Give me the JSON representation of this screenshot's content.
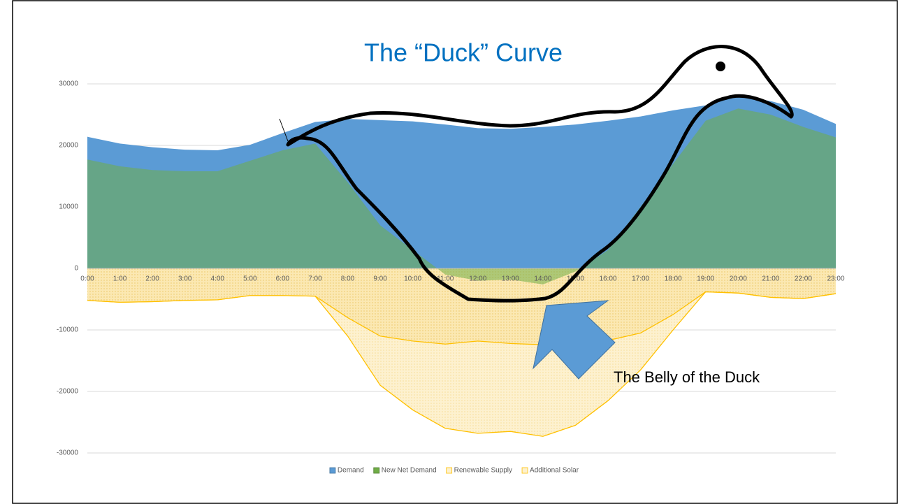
{
  "chart_data": {
    "type": "area",
    "title": "The “Duck” Curve",
    "annotations": [
      "The Belly of the Duck"
    ],
    "categories": [
      "0:00",
      "1:00",
      "2:00",
      "3:00",
      "4:00",
      "5:00",
      "6:00",
      "7:00",
      "8:00",
      "9:00",
      "10:00",
      "11:00",
      "12:00",
      "13:00",
      "14:00",
      "15:00",
      "16:00",
      "17:00",
      "18:00",
      "19:00",
      "20:00",
      "21:00",
      "22:00",
      "23:00"
    ],
    "ylim": [
      -30000,
      30000
    ],
    "yticks": [
      -30000,
      -20000,
      -10000,
      0,
      10000,
      20000,
      30000
    ],
    "grid": true,
    "legend": "bottom",
    "series": [
      {
        "name": "Demand",
        "color": "#5b9bd5",
        "values": [
          21400,
          20300,
          19700,
          19300,
          19200,
          20100,
          22000,
          23800,
          24300,
          24100,
          23900,
          23400,
          22800,
          22700,
          23000,
          23400,
          24000,
          24700,
          25700,
          26500,
          28100,
          27200,
          25800,
          23500
        ]
      },
      {
        "name": "New Net Demand",
        "color": "#70ad47",
        "values": [
          17700,
          16600,
          16000,
          15800,
          15800,
          17500,
          19200,
          20300,
          14000,
          7000,
          3000,
          -1000,
          -2000,
          -1800,
          -2600,
          -500,
          3000,
          10000,
          17000,
          24000,
          26000,
          25000,
          23000,
          21300
        ]
      },
      {
        "name": "Renewable Supply",
        "color": "#ffc000",
        "values": [
          -5200,
          -5500,
          -5400,
          -5200,
          -5100,
          -4400,
          -4400,
          -4500,
          -8000,
          -11000,
          -11800,
          -12300,
          -11800,
          -12200,
          -12400,
          -12000,
          -11700,
          -10500,
          -7500,
          -3800,
          -4000,
          -4700,
          -4900,
          -4100
        ]
      },
      {
        "name": "Additional Solar",
        "color": "#ffc000",
        "values": [
          -5200,
          -5500,
          -5400,
          -5200,
          -5100,
          -4400,
          -4400,
          -4500,
          -11000,
          -19000,
          -23000,
          -26000,
          -26800,
          -26500,
          -27300,
          -25500,
          -21500,
          -16500,
          -10000,
          -3800,
          -4000,
          -4700,
          -4900,
          -4100
        ]
      }
    ]
  }
}
